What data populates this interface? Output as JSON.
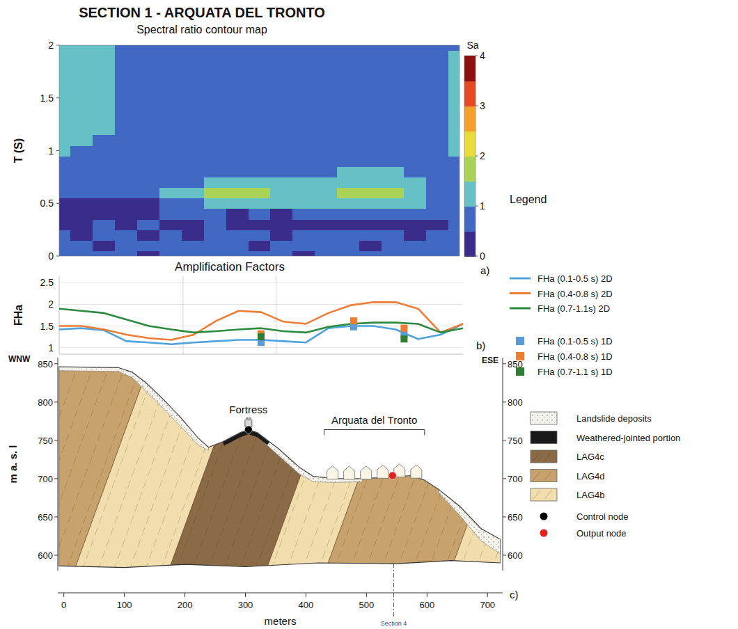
{
  "chart_data": [
    {
      "type": "heatmap",
      "title": "SECTION 1 - ARQUATA DEL TRONTO",
      "subtitle": "Spectral ratio contour map",
      "panel_label": "a)",
      "ylabel": "T (S)",
      "x": [
        0,
        40,
        80,
        120,
        160,
        200,
        240,
        280,
        320,
        360,
        400,
        440,
        480,
        520,
        560,
        600,
        640,
        680,
        720
      ],
      "y": [
        0,
        0.1,
        0.2,
        0.3,
        0.4,
        0.5,
        0.6,
        0.7,
        0.8,
        0.9,
        1,
        1.1,
        1.2,
        1.3,
        1.4,
        1.5,
        1.6,
        1.7,
        1.8,
        1.9,
        2
      ],
      "xlim": [
        0,
        720
      ],
      "ylim": [
        0,
        2
      ],
      "yticks": [
        0,
        0.5,
        1,
        1.5,
        2
      ],
      "tick_labels": "y",
      "values": [
        [
          0.6,
          0.55,
          0.6,
          0.6,
          0.45,
          0.6,
          0.6,
          0.6,
          0.6,
          0.6,
          0.6,
          0.45,
          0.6,
          0.6,
          0.6,
          0.6,
          0.6,
          0.6,
          0.6
        ],
        [
          0.6,
          0.6,
          0.45,
          0.6,
          0.6,
          0.6,
          0.6,
          0.6,
          0.6,
          0.45,
          0.6,
          0.6,
          0.6,
          0.6,
          0.45,
          0.6,
          0.6,
          0.6,
          0.6
        ],
        [
          0.6,
          0.45,
          0.6,
          0.6,
          0.45,
          0.6,
          0.45,
          0.6,
          0.6,
          0.6,
          0.45,
          0.6,
          0.6,
          0.6,
          0.6,
          0.6,
          0.45,
          0.6,
          0.6
        ],
        [
          0.45,
          0.4,
          0.6,
          0.45,
          0.6,
          0.4,
          0.45,
          0.6,
          0.4,
          0.45,
          0.4,
          0.45,
          0.4,
          0.45,
          0.4,
          0.45,
          0.4,
          0.45,
          0.6
        ],
        [
          0.4,
          0.35,
          0.35,
          0.4,
          0.45,
          0.55,
          0.6,
          0.55,
          0.45,
          0.6,
          0.45,
          0.55,
          0.7,
          0.8,
          0.75,
          0.8,
          0.7,
          0.6,
          0.6
        ],
        [
          0.45,
          0.45,
          0.45,
          0.45,
          0.45,
          0.6,
          0.9,
          1.05,
          1.1,
          1.1,
          1.05,
          1.05,
          1.15,
          1.3,
          1.3,
          1.2,
          1.05,
          0.8,
          0.7
        ],
        [
          0.7,
          0.7,
          0.7,
          0.7,
          0.75,
          1.0,
          1.2,
          1.55,
          1.65,
          1.6,
          1.3,
          1.15,
          1.3,
          1.6,
          1.65,
          1.55,
          1.15,
          0.85,
          0.8
        ],
        [
          0.8,
          0.8,
          0.8,
          0.8,
          0.8,
          0.85,
          0.95,
          1.05,
          1.1,
          1.05,
          1.0,
          1.0,
          1.2,
          1.35,
          1.4,
          1.3,
          1.1,
          0.9,
          0.85
        ],
        [
          0.8,
          0.8,
          0.8,
          0.8,
          0.8,
          0.8,
          0.8,
          0.8,
          0.85,
          0.85,
          0.8,
          0.85,
          0.95,
          1.05,
          1.1,
          1.05,
          0.95,
          0.85,
          0.85
        ],
        [
          0.85,
          0.85,
          0.8,
          0.8,
          0.8,
          0.8,
          0.8,
          0.8,
          0.8,
          0.8,
          0.8,
          0.8,
          0.8,
          0.85,
          0.85,
          0.85,
          0.8,
          0.85,
          0.9
        ],
        [
          1.0,
          0.95,
          0.9,
          0.85,
          0.8,
          0.8,
          0.8,
          0.8,
          0.8,
          0.8,
          0.8,
          0.8,
          0.8,
          0.8,
          0.8,
          0.8,
          0.8,
          0.9,
          1.05
        ],
        [
          1.1,
          1.05,
          0.95,
          0.85,
          0.8,
          0.8,
          0.8,
          0.8,
          0.8,
          0.8,
          0.8,
          0.8,
          0.8,
          0.8,
          0.8,
          0.8,
          0.8,
          0.9,
          1.1
        ],
        [
          1.2,
          1.15,
          1.05,
          0.9,
          0.8,
          0.8,
          0.8,
          0.8,
          0.8,
          0.8,
          0.8,
          0.8,
          0.8,
          0.8,
          0.8,
          0.8,
          0.8,
          0.9,
          1.1
        ],
        [
          1.2,
          1.15,
          1.05,
          0.9,
          0.8,
          0.8,
          0.8,
          0.8,
          0.8,
          0.8,
          0.8,
          0.8,
          0.8,
          0.8,
          0.8,
          0.8,
          0.8,
          0.95,
          1.1
        ],
        [
          1.2,
          1.2,
          1.1,
          0.95,
          0.8,
          0.8,
          0.8,
          0.8,
          0.8,
          0.8,
          0.8,
          0.8,
          0.8,
          0.8,
          0.8,
          0.8,
          0.8,
          0.95,
          1.1
        ],
        [
          1.2,
          1.2,
          1.15,
          0.95,
          0.8,
          0.8,
          0.8,
          0.8,
          0.8,
          0.8,
          0.8,
          0.8,
          0.8,
          0.8,
          0.8,
          0.8,
          0.8,
          0.95,
          1.1
        ],
        [
          1.2,
          1.2,
          1.1,
          0.95,
          0.8,
          0.8,
          0.8,
          0.8,
          0.8,
          0.8,
          0.8,
          0.8,
          0.8,
          0.8,
          0.8,
          0.8,
          0.8,
          0.95,
          1.1
        ],
        [
          1.2,
          1.2,
          1.1,
          0.9,
          0.8,
          0.8,
          0.8,
          0.8,
          0.8,
          0.8,
          0.8,
          0.8,
          0.8,
          0.8,
          0.8,
          0.8,
          0.8,
          0.95,
          1.1
        ],
        [
          1.2,
          1.2,
          1.1,
          0.9,
          0.8,
          0.8,
          0.8,
          0.8,
          0.8,
          0.8,
          0.8,
          0.8,
          0.8,
          0.8,
          0.8,
          0.8,
          0.8,
          0.95,
          1.1
        ],
        [
          1.2,
          1.2,
          1.1,
          0.9,
          0.8,
          0.8,
          0.8,
          0.8,
          0.8,
          0.8,
          0.8,
          0.8,
          0.8,
          0.8,
          0.8,
          0.8,
          0.8,
          0.9,
          1.05
        ],
        [
          1.2,
          1.2,
          1.1,
          0.9,
          0.8,
          0.8,
          0.8,
          0.8,
          0.8,
          0.8,
          0.8,
          0.8,
          0.8,
          0.8,
          0.8,
          0.8,
          0.8,
          0.9,
          0.95
        ]
      ],
      "colorbar": {
        "label": "Sa",
        "range": [
          0,
          4
        ],
        "ticks": [
          0,
          1,
          2,
          3,
          4
        ],
        "levels": [
          0,
          0.5,
          1,
          1.5,
          2,
          2.5,
          3,
          3.5,
          4
        ],
        "colors": [
          "#3a2c8a",
          "#4169c4",
          "#66c1c6",
          "#a9d257",
          "#e8dc3c",
          "#f5a02a",
          "#e64a22",
          "#8c1010"
        ]
      }
    },
    {
      "type": "line",
      "title": "Amplification Factors",
      "panel_label": "b)",
      "ylabel": "FHa",
      "x": [
        0,
        40,
        80,
        120,
        160,
        200,
        240,
        280,
        320,
        360,
        400,
        440,
        480,
        520,
        560,
        600,
        640,
        680,
        720
      ],
      "xlim": [
        0,
        720
      ],
      "ylim": [
        0.85,
        2.65
      ],
      "yticks": [
        1,
        1.5,
        2,
        2.5
      ],
      "xticks": [
        221,
        387
      ],
      "grid": true,
      "tick_labels": "y",
      "legend": "right",
      "legend_title": "Legend",
      "series": [
        {
          "name": "FHa (0.1-0.5 s) 2D",
          "type": "line",
          "color": "#4ea3dc",
          "values": [
            1.42,
            1.45,
            1.4,
            1.15,
            1.12,
            1.08,
            1.12,
            1.15,
            1.18,
            1.18,
            1.15,
            1.12,
            1.45,
            1.5,
            1.5,
            1.42,
            1.2,
            1.3,
            1.55
          ]
        },
        {
          "name": "FHa (0.4-0.8 s) 2D",
          "type": "line",
          "color": "#ee7d34",
          "values": [
            1.5,
            1.5,
            1.42,
            1.3,
            1.22,
            1.18,
            1.3,
            1.62,
            1.85,
            1.82,
            1.6,
            1.55,
            1.8,
            1.98,
            2.05,
            2.05,
            1.9,
            1.35,
            1.55
          ]
        },
        {
          "name": "FHa (0.7-1.1s) 2D",
          "type": "line",
          "color": "#2b8a3e",
          "values": [
            1.9,
            1.85,
            1.8,
            1.65,
            1.5,
            1.42,
            1.35,
            1.38,
            1.42,
            1.45,
            1.38,
            1.35,
            1.48,
            1.55,
            1.58,
            1.58,
            1.55,
            1.35,
            1.45
          ]
        },
        {
          "name": "FHa (0.1-0.5 s) 1D",
          "type": "scatter",
          "marker": "square",
          "color": "#5b9bd5",
          "x": [
            360,
            525,
            615
          ],
          "values": [
            1.12,
            1.48,
            1.3
          ]
        },
        {
          "name": "FHa (0.4-0.8 s) 1D",
          "type": "scatter",
          "marker": "square",
          "color": "#ed7d31",
          "x": [
            360,
            525,
            615
          ],
          "values": [
            1.32,
            1.62,
            1.45
          ]
        },
        {
          "name": "FHa (0.7-1.1 s) 1D",
          "type": "scatter",
          "marker": "square",
          "color": "#2e7d32",
          "x": [
            360,
            525,
            615
          ],
          "values": [
            1.25,
            null,
            1.2
          ]
        }
      ]
    },
    {
      "type": "cross_section",
      "panel_label": "c)",
      "xlabel": "meters",
      "ylabel": "m a. s. l",
      "left_label": "WNW",
      "right_label": "ESE",
      "xlim": [
        -10,
        725
      ],
      "ylim": [
        580,
        858
      ],
      "xticks": [
        0,
        100,
        200,
        300,
        400,
        500,
        600,
        700
      ],
      "yticks": [
        600,
        650,
        700,
        750,
        800,
        850
      ],
      "surface": [
        [
          -8,
          846
        ],
        [
          90,
          845
        ],
        [
          113,
          839
        ],
        [
          136,
          825
        ],
        [
          165,
          803
        ],
        [
          193,
          780
        ],
        [
          222,
          753
        ],
        [
          239,
          741
        ],
        [
          262,
          748
        ],
        [
          291,
          760
        ],
        [
          305,
          764
        ],
        [
          320,
          760
        ],
        [
          355,
          739
        ],
        [
          389,
          715
        ],
        [
          412,
          703
        ],
        [
          447,
          700
        ],
        [
          493,
          700
        ],
        [
          539,
          702
        ],
        [
          573,
          704
        ],
        [
          596,
          698
        ],
        [
          619,
          686
        ],
        [
          654,
          664
        ],
        [
          689,
          635
        ],
        [
          721,
          621
        ]
      ],
      "bottom": [
        [
          -8,
          586
        ],
        [
          100,
          584
        ],
        [
          200,
          588
        ],
        [
          300,
          585
        ],
        [
          420,
          590
        ],
        [
          550,
          589
        ],
        [
          640,
          593
        ],
        [
          721,
          590
        ]
      ],
      "boundaries": [
        [
          [
            17,
            580
          ],
          [
            145,
            858
          ]
        ],
        [
          [
            173,
            580
          ],
          [
            301,
            858
          ]
        ],
        [
          [
            334,
            580
          ],
          [
            462,
            858
          ]
        ],
        [
          [
            432,
            580
          ],
          [
            560,
            858
          ]
        ],
        [
          [
            639,
            580
          ],
          [
            767,
            858
          ]
        ]
      ],
      "band_units": [
        1,
        2,
        0,
        2,
        1,
        2
      ],
      "formations": [
        {
          "name": "LAG4c",
          "color": "#8b6a47"
        },
        {
          "name": "LAG4d",
          "color": "#c8a26c"
        },
        {
          "name": "LAG4b",
          "color": "#f1deac"
        }
      ],
      "landslide": {
        "name": "Landslide deposits",
        "color": "#f6f3ec",
        "polygons": [
          [
            [
              -8,
              846
            ],
            [
              90,
              845
            ],
            [
              113,
              839
            ],
            [
              136,
              825
            ],
            [
              165,
              803
            ],
            [
              193,
              780
            ],
            [
              222,
              753
            ],
            [
              239,
              741
            ],
            [
              239,
              737
            ],
            [
              222,
              744
            ],
            [
              193,
              768
            ],
            [
              165,
              791
            ],
            [
              136,
              814
            ],
            [
              113,
              832
            ],
            [
              90,
              840
            ],
            [
              -8,
              841
            ]
          ],
          [
            [
              320,
              760
            ],
            [
              355,
              739
            ],
            [
              389,
              715
            ],
            [
              412,
              703
            ],
            [
              447,
              700
            ],
            [
              493,
              700
            ],
            [
              493,
              696
            ],
            [
              447,
              695
            ],
            [
              412,
              696
            ],
            [
              389,
              706
            ],
            [
              355,
              730
            ],
            [
              320,
              755
            ]
          ],
          [
            [
              619,
              686
            ],
            [
              654,
              664
            ],
            [
              689,
              635
            ],
            [
              721,
              621
            ],
            [
              721,
              602
            ],
            [
              689,
              619
            ],
            [
              654,
              652
            ],
            [
              619,
              682
            ]
          ]
        ]
      },
      "weathered": {
        "name": "Weathered-jointed portion",
        "color": "#1a1a1a",
        "polygons": [
          [
            [
              262,
              748
            ],
            [
              291,
              760
            ],
            [
              305,
              764
            ],
            [
              320,
              760
            ],
            [
              340,
              748
            ],
            [
              336,
              744
            ],
            [
              320,
              754
            ],
            [
              305,
              758
            ],
            [
              291,
              754
            ],
            [
              265,
              743
            ]
          ]
        ]
      },
      "nodes": [
        {
          "name": "Control node",
          "color": "#000000",
          "x": 305,
          "elev": 764
        },
        {
          "name": "Output node",
          "color": "#e3211c",
          "x": 543,
          "elev": 704
        }
      ],
      "annotations": [
        {
          "text": "Fortress",
          "x": 305,
          "elev": 764
        },
        {
          "text": "Arquata del Tronto",
          "from": 430,
          "to": 596,
          "elev": 764
        }
      ],
      "section_marker": {
        "text": "Section 4",
        "x": 545
      }
    }
  ]
}
